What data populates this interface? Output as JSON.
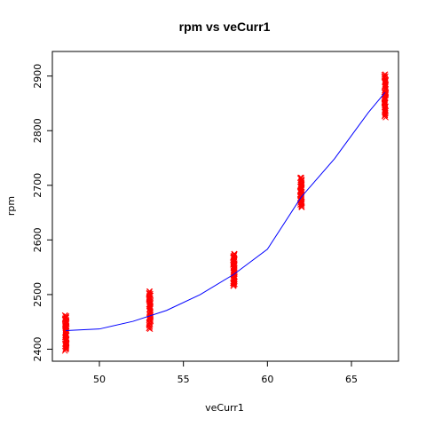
{
  "chart_data": {
    "type": "scatter",
    "title": "rpm vs veCurr1",
    "xlabel": "veCurr1",
    "ylabel": "rpm",
    "xlim": [
      47.2,
      67.8
    ],
    "ylim": [
      2378,
      2945
    ],
    "xticks": [
      50,
      55,
      60,
      65
    ],
    "yticks": [
      2400,
      2500,
      2600,
      2700,
      2800,
      2900
    ],
    "grid": false,
    "legend": "none",
    "colors": {
      "points": "#ff0000",
      "fit": "#0000ff"
    },
    "clusters": [
      {
        "x": 48,
        "ymin": 2398,
        "ymax": 2463
      },
      {
        "x": 53,
        "ymin": 2438,
        "ymax": 2506
      },
      {
        "x": 58,
        "ymin": 2515,
        "ymax": 2575
      },
      {
        "x": 62,
        "ymin": 2659,
        "ymax": 2715
      },
      {
        "x": 67,
        "ymin": 2825,
        "ymax": 2903
      }
    ],
    "fit_curve": {
      "x": [
        48,
        50,
        52,
        54,
        56,
        58,
        60,
        62,
        64,
        66,
        67
      ],
      "y": [
        2434,
        2437,
        2451,
        2471,
        2500,
        2537,
        2583,
        2678,
        2749,
        2833,
        2870
      ]
    }
  }
}
